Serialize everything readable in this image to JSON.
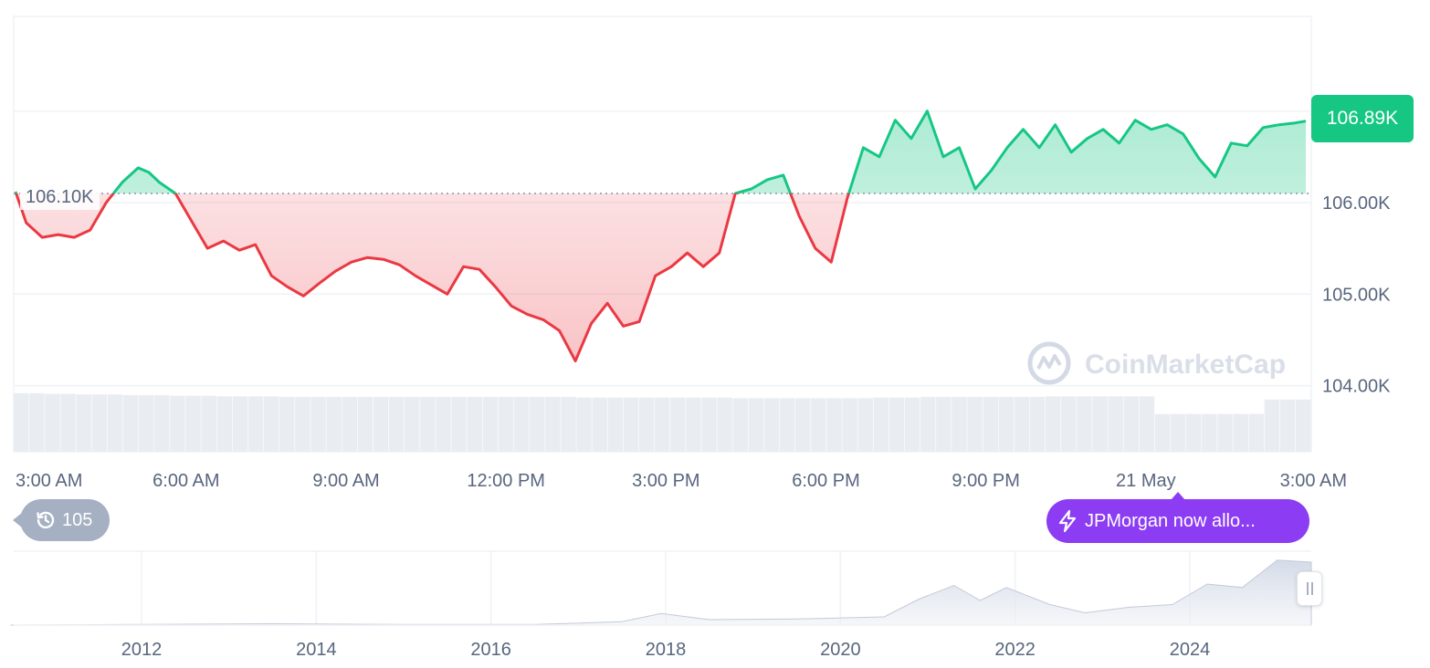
{
  "chart_data": [
    {
      "type": "line",
      "title": "",
      "xlabel": "",
      "ylabel": "",
      "x_ticks": [
        "3:00 AM",
        "6:00 AM",
        "9:00 AM",
        "12:00 PM",
        "3:00 PM",
        "6:00 PM",
        "9:00 PM",
        "21 May",
        "3:00 AM"
      ],
      "y_ticks": [
        "106.00K",
        "105.00K",
        "104.00K"
      ],
      "ylim": [
        103800,
        107800
      ],
      "baseline": 106100,
      "baseline_label": "106.10K",
      "current_price_label": "106.89K",
      "x_hours": [
        2.8,
        3.0,
        3.3,
        3.6,
        3.9,
        4.2,
        4.5,
        4.8,
        5.1,
        5.3,
        5.5,
        5.8,
        6.1,
        6.4,
        6.7,
        7.0,
        7.3,
        7.6,
        7.9,
        8.2,
        8.5,
        8.8,
        9.1,
        9.4,
        9.7,
        10.0,
        10.3,
        10.6,
        10.9,
        11.2,
        11.5,
        11.8,
        12.1,
        12.4,
        12.7,
        13.0,
        13.3,
        13.6,
        13.9,
        14.2,
        14.5,
        14.8,
        15.1,
        15.4,
        15.7,
        16.0,
        16.3,
        16.6,
        16.9,
        17.2,
        17.5,
        17.8,
        18.1,
        18.4,
        18.7,
        19.0,
        19.3,
        19.6,
        19.9,
        20.2,
        20.5,
        20.8,
        21.1,
        21.4,
        21.7,
        22.0,
        22.3,
        22.6,
        22.9,
        23.2,
        23.5,
        23.8,
        24.1,
        24.4,
        24.7,
        25.0,
        25.3,
        25.6,
        25.9,
        26.2,
        26.5,
        26.8,
        27.0
      ],
      "prices": [
        106120,
        105780,
        105620,
        105650,
        105620,
        105700,
        106000,
        106220,
        106380,
        106330,
        106220,
        106100,
        105800,
        105500,
        105580,
        105480,
        105540,
        105200,
        105080,
        104980,
        105120,
        105250,
        105350,
        105400,
        105380,
        105320,
        105200,
        105100,
        105000,
        105300,
        105270,
        105080,
        104870,
        104780,
        104720,
        104600,
        104270,
        104680,
        104900,
        104650,
        104700,
        105200,
        105300,
        105450,
        105300,
        105450,
        106100,
        106150,
        106250,
        106300,
        105850,
        105500,
        105350,
        106050,
        106600,
        106500,
        106900,
        106700,
        107000,
        106500,
        106600,
        106150,
        106350,
        106600,
        106800,
        106600,
        106850,
        106550,
        106700,
        106800,
        106650,
        106900,
        106800,
        106850,
        106750,
        106480,
        106280,
        106650,
        106620,
        106820,
        106850,
        106870,
        106890
      ],
      "volume": [
        0.93,
        0.93,
        0.92,
        0.92,
        0.91,
        0.91,
        0.91,
        0.9,
        0.9,
        0.9,
        0.89,
        0.89,
        0.89,
        0.88,
        0.88,
        0.88,
        0.88,
        0.87,
        0.87,
        0.87,
        0.87,
        0.87,
        0.87,
        0.87,
        0.87,
        0.87,
        0.87,
        0.87,
        0.87,
        0.87,
        0.87,
        0.87,
        0.87,
        0.87,
        0.87,
        0.87,
        0.86,
        0.86,
        0.86,
        0.86,
        0.86,
        0.86,
        0.86,
        0.86,
        0.86,
        0.86,
        0.85,
        0.85,
        0.85,
        0.85,
        0.85,
        0.85,
        0.85,
        0.85,
        0.85,
        0.86,
        0.86,
        0.86,
        0.87,
        0.87,
        0.87,
        0.87,
        0.87,
        0.87,
        0.87,
        0.87,
        0.88,
        0.88,
        0.88,
        0.88,
        0.88,
        0.88,
        0.88,
        0.6,
        0.6,
        0.6,
        0.6,
        0.6,
        0.6,
        0.6,
        0.83,
        0.83,
        0.83
      ],
      "line_colors": {
        "up": "#16c784",
        "down": "#ea3943"
      }
    },
    {
      "type": "area",
      "title": "",
      "x_ticks": [
        "2012",
        "2014",
        "2016",
        "2018",
        "2020",
        "2022",
        "2024"
      ],
      "x_years": [
        2010.5,
        2012,
        2013.5,
        2015,
        2016.5,
        2017.5,
        2017.95,
        2018.5,
        2019.5,
        2020.5,
        2020.9,
        2021.3,
        2021.6,
        2021.9,
        2022.4,
        2022.8,
        2023.3,
        2023.8,
        2024.2,
        2024.6,
        2025.0,
        2025.4
      ],
      "values": [
        0.0,
        0.01,
        0.02,
        0.01,
        0.01,
        0.05,
        0.17,
        0.08,
        0.09,
        0.12,
        0.38,
        0.58,
        0.36,
        0.55,
        0.3,
        0.18,
        0.26,
        0.3,
        0.6,
        0.55,
        0.95,
        0.92
      ]
    }
  ],
  "price_badge": {
    "value": "106.89K",
    "color": "#16c784"
  },
  "history": {
    "count": "105"
  },
  "news": {
    "text": "JPMorgan now allo..."
  },
  "watermark": {
    "text": "CoinMarketCap"
  }
}
